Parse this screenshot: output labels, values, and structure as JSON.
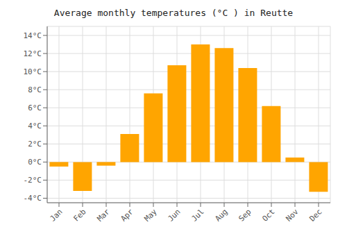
{
  "chart_data": {
    "type": "bar",
    "title": "Average monthly temperatures (°C ) in Reutte",
    "categories": [
      "Jan",
      "Feb",
      "Mar",
      "Apr",
      "May",
      "Jun",
      "Jul",
      "Aug",
      "Sep",
      "Oct",
      "Nov",
      "Dec"
    ],
    "values": [
      -0.5,
      -3.2,
      -0.4,
      3.1,
      7.6,
      10.7,
      13.0,
      12.6,
      10.4,
      6.2,
      0.5,
      -3.3
    ],
    "color": "#FFA500",
    "ylim": [
      -4.5,
      15.0
    ],
    "yticks": [
      {
        "value": -4,
        "label": "-4°C"
      },
      {
        "value": -2,
        "label": "-2°C"
      },
      {
        "value": 0,
        "label": "0°C"
      },
      {
        "value": 2,
        "label": "2°C"
      },
      {
        "value": 4,
        "label": "4°C"
      },
      {
        "value": 6,
        "label": "6°C"
      },
      {
        "value": 8,
        "label": "8°C"
      },
      {
        "value": 10,
        "label": "10°C"
      },
      {
        "value": 12,
        "label": "12°C"
      },
      {
        "value": 14,
        "label": "14°C"
      }
    ],
    "grid": true
  }
}
